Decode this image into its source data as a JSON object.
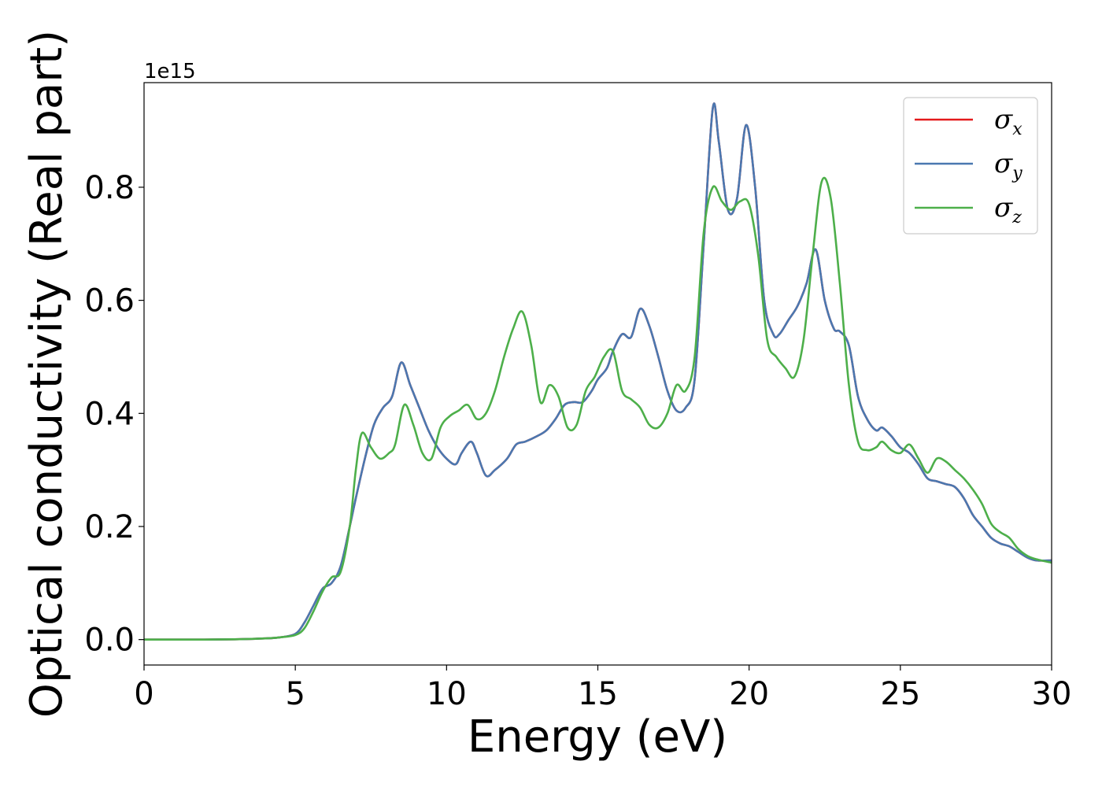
{
  "chart_data": {
    "type": "line",
    "title": "",
    "xlabel": "Energy (eV)",
    "ylabel": "Optical conductivity (Real part)",
    "y_offset_label": "1e15",
    "xlim": [
      0,
      30
    ],
    "ylim": [
      -0.045,
      0.985
    ],
    "xticks": [
      0,
      5,
      10,
      15,
      20,
      25,
      30
    ],
    "xtick_labels": [
      "0",
      "5",
      "10",
      "15",
      "20",
      "25",
      "30"
    ],
    "yticks": [
      0.0,
      0.2,
      0.4,
      0.6,
      0.8
    ],
    "ytick_labels": [
      "0.0",
      "0.2",
      "0.4",
      "0.6",
      "0.8"
    ],
    "grid": false,
    "legend": "top-right",
    "series": [
      {
        "name": "σ",
        "sub": "x",
        "color": "#e41a1c",
        "x": [
          0,
          1,
          2,
          3,
          4,
          4.5,
          5,
          5.3,
          5.6,
          5.9,
          6.2,
          6.5,
          6.8,
          7.0,
          7.3,
          7.6,
          7.9,
          8.2,
          8.5,
          8.8,
          9.1,
          9.4,
          9.7,
          10.0,
          10.3,
          10.5,
          10.8,
          11.0,
          11.3,
          11.6,
          12.0,
          12.3,
          12.6,
          13.0,
          13.3,
          13.6,
          13.9,
          14.2,
          14.5,
          14.8,
          15.0,
          15.3,
          15.5,
          15.8,
          16.1,
          16.4,
          16.7,
          17.0,
          17.3,
          17.6,
          17.9,
          18.2,
          18.5,
          18.8,
          19.0,
          19.3,
          19.6,
          19.9,
          20.2,
          20.5,
          20.8,
          21.0,
          21.3,
          21.6,
          21.9,
          22.2,
          22.5,
          22.8,
          23.0,
          23.3,
          23.6,
          23.9,
          24.2,
          24.4,
          24.7,
          25.0,
          25.3,
          25.6,
          25.9,
          26.2,
          26.5,
          26.8,
          27.1,
          27.4,
          27.7,
          28.0,
          28.3,
          28.6,
          28.9,
          29.2,
          29.5,
          30.0
        ],
        "y": [
          0.0,
          0.0,
          0.0,
          0.0005,
          0.002,
          0.004,
          0.01,
          0.03,
          0.06,
          0.09,
          0.1,
          0.13,
          0.2,
          0.25,
          0.32,
          0.38,
          0.41,
          0.43,
          0.49,
          0.45,
          0.41,
          0.37,
          0.34,
          0.32,
          0.31,
          0.33,
          0.35,
          0.33,
          0.29,
          0.3,
          0.32,
          0.345,
          0.35,
          0.36,
          0.37,
          0.39,
          0.415,
          0.42,
          0.42,
          0.44,
          0.46,
          0.48,
          0.51,
          0.54,
          0.535,
          0.585,
          0.555,
          0.5,
          0.44,
          0.405,
          0.41,
          0.46,
          0.7,
          0.94,
          0.88,
          0.76,
          0.78,
          0.91,
          0.8,
          0.6,
          0.54,
          0.54,
          0.565,
          0.59,
          0.63,
          0.69,
          0.6,
          0.55,
          0.545,
          0.52,
          0.43,
          0.39,
          0.37,
          0.375,
          0.36,
          0.34,
          0.33,
          0.31,
          0.285,
          0.28,
          0.275,
          0.27,
          0.25,
          0.22,
          0.2,
          0.18,
          0.17,
          0.165,
          0.155,
          0.145,
          0.14,
          0.14
        ]
      },
      {
        "name": "σ",
        "sub": "y",
        "color": "#4a78b0",
        "x": [
          0,
          1,
          2,
          3,
          4,
          4.5,
          5,
          5.3,
          5.6,
          5.9,
          6.2,
          6.5,
          6.8,
          7.0,
          7.3,
          7.6,
          7.9,
          8.2,
          8.5,
          8.8,
          9.1,
          9.4,
          9.7,
          10.0,
          10.3,
          10.5,
          10.8,
          11.0,
          11.3,
          11.6,
          12.0,
          12.3,
          12.6,
          13.0,
          13.3,
          13.6,
          13.9,
          14.2,
          14.5,
          14.8,
          15.0,
          15.3,
          15.5,
          15.8,
          16.1,
          16.4,
          16.7,
          17.0,
          17.3,
          17.6,
          17.9,
          18.2,
          18.5,
          18.8,
          19.0,
          19.3,
          19.6,
          19.9,
          20.2,
          20.5,
          20.8,
          21.0,
          21.3,
          21.6,
          21.9,
          22.2,
          22.5,
          22.8,
          23.0,
          23.3,
          23.6,
          23.9,
          24.2,
          24.4,
          24.7,
          25.0,
          25.3,
          25.6,
          25.9,
          26.2,
          26.5,
          26.8,
          27.1,
          27.4,
          27.7,
          28.0,
          28.3,
          28.6,
          28.9,
          29.2,
          29.5,
          30.0
        ],
        "y": [
          0.0,
          0.0,
          0.0,
          0.0005,
          0.002,
          0.004,
          0.01,
          0.03,
          0.06,
          0.09,
          0.1,
          0.13,
          0.2,
          0.25,
          0.32,
          0.38,
          0.41,
          0.43,
          0.49,
          0.45,
          0.41,
          0.37,
          0.34,
          0.32,
          0.31,
          0.33,
          0.35,
          0.33,
          0.29,
          0.3,
          0.32,
          0.345,
          0.35,
          0.36,
          0.37,
          0.39,
          0.415,
          0.42,
          0.42,
          0.44,
          0.46,
          0.48,
          0.51,
          0.54,
          0.535,
          0.585,
          0.555,
          0.5,
          0.44,
          0.405,
          0.41,
          0.46,
          0.7,
          0.94,
          0.88,
          0.76,
          0.78,
          0.91,
          0.8,
          0.6,
          0.54,
          0.54,
          0.565,
          0.59,
          0.63,
          0.69,
          0.6,
          0.55,
          0.545,
          0.52,
          0.43,
          0.39,
          0.37,
          0.375,
          0.36,
          0.34,
          0.33,
          0.31,
          0.285,
          0.28,
          0.275,
          0.27,
          0.25,
          0.22,
          0.2,
          0.18,
          0.17,
          0.165,
          0.155,
          0.145,
          0.14,
          0.14
        ]
      },
      {
        "name": "σ",
        "sub": "z",
        "color": "#4daf4a",
        "x": [
          0,
          1,
          2,
          3,
          4,
          4.5,
          5,
          5.3,
          5.6,
          5.9,
          6.2,
          6.5,
          6.8,
          7.0,
          7.2,
          7.5,
          7.8,
          8.1,
          8.3,
          8.6,
          8.9,
          9.2,
          9.5,
          9.8,
          10.1,
          10.4,
          10.7,
          11.0,
          11.3,
          11.6,
          11.9,
          12.2,
          12.5,
          12.8,
          13.1,
          13.4,
          13.7,
          14.0,
          14.3,
          14.6,
          14.9,
          15.2,
          15.5,
          15.8,
          16.1,
          16.4,
          16.7,
          17.0,
          17.3,
          17.6,
          17.9,
          18.2,
          18.5,
          18.8,
          19.1,
          19.4,
          19.7,
          20.0,
          20.3,
          20.6,
          20.9,
          21.2,
          21.5,
          21.8,
          22.1,
          22.4,
          22.7,
          23.0,
          23.3,
          23.6,
          23.9,
          24.2,
          24.4,
          24.7,
          25.0,
          25.3,
          25.6,
          25.9,
          26.2,
          26.5,
          26.8,
          27.1,
          27.4,
          27.7,
          28.0,
          28.3,
          28.6,
          28.9,
          29.2,
          29.5,
          30.0
        ],
        "y": [
          0.0,
          0.0,
          0.0,
          0.0005,
          0.002,
          0.004,
          0.008,
          0.02,
          0.05,
          0.085,
          0.11,
          0.12,
          0.2,
          0.3,
          0.365,
          0.34,
          0.32,
          0.33,
          0.345,
          0.415,
          0.38,
          0.33,
          0.32,
          0.375,
          0.395,
          0.405,
          0.415,
          0.39,
          0.4,
          0.44,
          0.5,
          0.55,
          0.58,
          0.52,
          0.42,
          0.45,
          0.43,
          0.375,
          0.38,
          0.44,
          0.465,
          0.5,
          0.51,
          0.44,
          0.425,
          0.41,
          0.38,
          0.375,
          0.4,
          0.45,
          0.44,
          0.5,
          0.72,
          0.8,
          0.775,
          0.76,
          0.775,
          0.77,
          0.68,
          0.53,
          0.5,
          0.48,
          0.465,
          0.53,
          0.68,
          0.81,
          0.78,
          0.63,
          0.45,
          0.35,
          0.335,
          0.34,
          0.35,
          0.335,
          0.33,
          0.345,
          0.32,
          0.295,
          0.32,
          0.315,
          0.3,
          0.285,
          0.265,
          0.24,
          0.205,
          0.19,
          0.18,
          0.16,
          0.148,
          0.142,
          0.136
        ]
      }
    ]
  }
}
